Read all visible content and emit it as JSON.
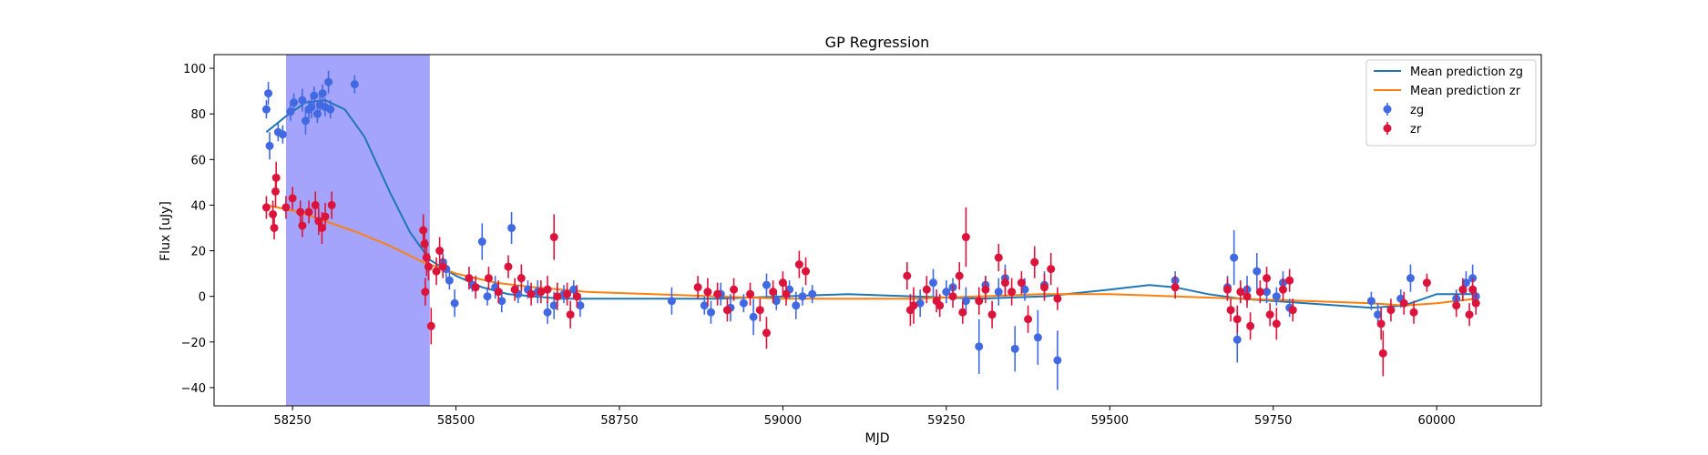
{
  "chart_data": {
    "type": "scatter",
    "title": "GP Regression",
    "xlabel": "MJD",
    "ylabel": "Flux [uJy]",
    "xlim": [
      58130,
      60160
    ],
    "ylim": [
      -48,
      106
    ],
    "xticks": [
      58250,
      58500,
      58750,
      59000,
      59250,
      59500,
      59750,
      60000
    ],
    "yticks": [
      -40,
      -20,
      0,
      20,
      40,
      60,
      80,
      100
    ],
    "grid": false,
    "legend_position": "top-right",
    "shaded_region": {
      "x_start": 58240,
      "x_end": 58460,
      "color": "#a4a4fc"
    },
    "colors": {
      "zg_line": "#1f77b4",
      "zr_line": "#ff7f0e",
      "zg_points": "#4169e1",
      "zr_points": "#dc143c"
    },
    "legend": [
      {
        "label": "Mean prediction zg",
        "kind": "line",
        "color": "#1f77b4"
      },
      {
        "label": "Mean prediction zr",
        "kind": "line",
        "color": "#ff7f0e"
      },
      {
        "label": "zg",
        "kind": "errorbar",
        "color": "#4169e1"
      },
      {
        "label": "zr",
        "kind": "errorbar",
        "color": "#dc143c"
      }
    ],
    "lines": [
      {
        "name": "Mean prediction zg",
        "color": "#1f77b4",
        "x": [
          58210,
          58240,
          58270,
          58300,
          58330,
          58360,
          58400,
          58430,
          58460,
          58500,
          58540,
          58580,
          58620,
          58660,
          58700,
          58800,
          58900,
          59000,
          59100,
          59200,
          59300,
          59400,
          59500,
          59560,
          59600,
          59650,
          59700,
          59750,
          59800,
          59850,
          59900,
          59950,
          60000,
          60060
        ],
        "y": [
          72,
          79,
          85,
          86,
          82,
          70,
          45,
          28,
          16,
          9,
          4,
          1,
          0,
          -1,
          -1,
          -1,
          -1,
          0,
          1,
          0,
          -1,
          0,
          3,
          5,
          4,
          1,
          -1,
          -2,
          -3,
          -4,
          -5,
          -4,
          1,
          1
        ]
      },
      {
        "name": "Mean prediction zr",
        "color": "#ff7f0e",
        "x": [
          58210,
          58260,
          58300,
          58350,
          58400,
          58450,
          58500,
          58560,
          58620,
          58700,
          58800,
          58900,
          59000,
          59100,
          59200,
          59300,
          59400,
          59500,
          59600,
          59700,
          59800,
          59900,
          59950,
          60000,
          60060
        ],
        "y": [
          40,
          37,
          33,
          28,
          22,
          15,
          10,
          6,
          4,
          2,
          1,
          0,
          -1,
          -1,
          -1,
          0,
          1,
          1,
          0,
          -1,
          -2,
          -3,
          -4,
          -3,
          -1
        ]
      }
    ],
    "series": [
      {
        "name": "zg",
        "color": "#4169e1",
        "points": [
          [
            58210,
            82,
            4
          ],
          [
            58213,
            89,
            5
          ],
          [
            58215,
            66,
            6
          ],
          [
            58228,
            72,
            4
          ],
          [
            58235,
            71,
            4
          ],
          [
            58247,
            81,
            4
          ],
          [
            58252,
            85,
            4
          ],
          [
            58265,
            86,
            5
          ],
          [
            58270,
            77,
            6
          ],
          [
            58275,
            82,
            4
          ],
          [
            58279,
            83,
            5
          ],
          [
            58283,
            88,
            4
          ],
          [
            58288,
            80,
            4
          ],
          [
            58292,
            84,
            5
          ],
          [
            58296,
            89,
            4
          ],
          [
            58300,
            83,
            4
          ],
          [
            58305,
            94,
            5
          ],
          [
            58308,
            82,
            4
          ],
          [
            58345,
            93,
            4
          ],
          [
            58480,
            15,
            4
          ],
          [
            58485,
            12,
            4
          ],
          [
            58490,
            7,
            4
          ],
          [
            58498,
            -3,
            6
          ],
          [
            58525,
            5,
            3
          ],
          [
            58540,
            24,
            8
          ],
          [
            58548,
            0,
            4
          ],
          [
            58560,
            4,
            5
          ],
          [
            58570,
            -2,
            5
          ],
          [
            58585,
            30,
            7
          ],
          [
            58595,
            1,
            4
          ],
          [
            58610,
            3,
            4
          ],
          [
            58625,
            2,
            5
          ],
          [
            58640,
            -7,
            5
          ],
          [
            58650,
            -4,
            6
          ],
          [
            58665,
            1,
            4
          ],
          [
            58680,
            3,
            4
          ],
          [
            58690,
            -4,
            5
          ],
          [
            58830,
            -2,
            6
          ],
          [
            58880,
            -4,
            4
          ],
          [
            58890,
            -7,
            5
          ],
          [
            58905,
            1,
            5
          ],
          [
            58920,
            -5,
            6
          ],
          [
            58940,
            -3,
            4
          ],
          [
            58955,
            -9,
            8
          ],
          [
            58975,
            5,
            5
          ],
          [
            58990,
            -2,
            4
          ],
          [
            59010,
            3,
            4
          ],
          [
            59020,
            -4,
            6
          ],
          [
            59030,
            0,
            4
          ],
          [
            59045,
            1,
            4
          ],
          [
            59210,
            -3,
            6
          ],
          [
            59230,
            6,
            6
          ],
          [
            59250,
            2,
            5
          ],
          [
            59260,
            4,
            4
          ],
          [
            59280,
            -2,
            6
          ],
          [
            59300,
            -22,
            12
          ],
          [
            59310,
            5,
            4
          ],
          [
            59330,
            2,
            6
          ],
          [
            59340,
            8,
            6
          ],
          [
            59355,
            -23,
            10
          ],
          [
            59370,
            3,
            5
          ],
          [
            59390,
            -18,
            12
          ],
          [
            59400,
            5,
            6
          ],
          [
            59420,
            -28,
            13
          ],
          [
            59600,
            7,
            4
          ],
          [
            59680,
            4,
            5
          ],
          [
            59690,
            17,
            12
          ],
          [
            59695,
            -19,
            10
          ],
          [
            59710,
            3,
            6
          ],
          [
            59725,
            11,
            8
          ],
          [
            59740,
            2,
            5
          ],
          [
            59755,
            0,
            4
          ],
          [
            59765,
            6,
            5
          ],
          [
            59775,
            -5,
            4
          ],
          [
            59900,
            -2,
            4
          ],
          [
            59910,
            -8,
            5
          ],
          [
            59945,
            -1,
            4
          ],
          [
            59960,
            8,
            6
          ],
          [
            60030,
            -1,
            4
          ],
          [
            60045,
            6,
            5
          ],
          [
            60055,
            8,
            6
          ],
          [
            60060,
            0,
            4
          ]
        ]
      },
      {
        "name": "zr",
        "color": "#dc143c",
        "points": [
          [
            58210,
            39,
            5
          ],
          [
            58220,
            36,
            6
          ],
          [
            58222,
            30,
            5
          ],
          [
            58225,
            52,
            7
          ],
          [
            58224,
            46,
            7
          ],
          [
            58240,
            39,
            5
          ],
          [
            58250,
            43,
            5
          ],
          [
            58262,
            37,
            5
          ],
          [
            58265,
            31,
            5
          ],
          [
            58275,
            37,
            5
          ],
          [
            58285,
            40,
            6
          ],
          [
            58290,
            33,
            6
          ],
          [
            58295,
            30,
            7
          ],
          [
            58300,
            35,
            6
          ],
          [
            58310,
            40,
            6
          ],
          [
            58450,
            29,
            7
          ],
          [
            58452,
            23,
            7
          ],
          [
            58455,
            17,
            8
          ],
          [
            58453,
            2,
            6
          ],
          [
            58458,
            13,
            6
          ],
          [
            58462,
            -13,
            8
          ],
          [
            58470,
            11,
            6
          ],
          [
            58475,
            20,
            6
          ],
          [
            58480,
            13,
            5
          ],
          [
            58520,
            8,
            5
          ],
          [
            58530,
            4,
            5
          ],
          [
            58550,
            8,
            5
          ],
          [
            58565,
            2,
            5
          ],
          [
            58580,
            13,
            5
          ],
          [
            58590,
            3,
            5
          ],
          [
            58600,
            8,
            6
          ],
          [
            58615,
            1,
            5
          ],
          [
            58630,
            2,
            5
          ],
          [
            58640,
            3,
            6
          ],
          [
            58650,
            26,
            10
          ],
          [
            58655,
            0,
            6
          ],
          [
            58670,
            1,
            5
          ],
          [
            58675,
            -8,
            6
          ],
          [
            58685,
            0,
            5
          ],
          [
            58870,
            4,
            5
          ],
          [
            58885,
            2,
            6
          ],
          [
            58900,
            1,
            5
          ],
          [
            58915,
            -6,
            5
          ],
          [
            58925,
            3,
            5
          ],
          [
            58950,
            1,
            5
          ],
          [
            58965,
            -6,
            5
          ],
          [
            58975,
            -16,
            7
          ],
          [
            58985,
            2,
            5
          ],
          [
            59000,
            6,
            5
          ],
          [
            59005,
            1,
            5
          ],
          [
            59025,
            14,
            6
          ],
          [
            59035,
            11,
            6
          ],
          [
            59190,
            9,
            6
          ],
          [
            59195,
            -6,
            7
          ],
          [
            59200,
            -4,
            8
          ],
          [
            59220,
            3,
            6
          ],
          [
            59235,
            -2,
            5
          ],
          [
            59240,
            -4,
            5
          ],
          [
            59260,
            0,
            5
          ],
          [
            59270,
            9,
            6
          ],
          [
            59275,
            -7,
            5
          ],
          [
            59280,
            26,
            13
          ],
          [
            59300,
            -2,
            6
          ],
          [
            59310,
            3,
            6
          ],
          [
            59320,
            -8,
            6
          ],
          [
            59330,
            17,
            6
          ],
          [
            59340,
            6,
            6
          ],
          [
            59350,
            2,
            6
          ],
          [
            59365,
            6,
            5
          ],
          [
            59375,
            -10,
            6
          ],
          [
            59385,
            15,
            7
          ],
          [
            59400,
            4,
            6
          ],
          [
            59410,
            12,
            7
          ],
          [
            59420,
            -1,
            5
          ],
          [
            59600,
            4,
            5
          ],
          [
            59680,
            3,
            5
          ],
          [
            59685,
            -6,
            5
          ],
          [
            59695,
            -10,
            6
          ],
          [
            59700,
            2,
            5
          ],
          [
            59710,
            0,
            5
          ],
          [
            59715,
            -13,
            6
          ],
          [
            59730,
            2,
            5
          ],
          [
            59740,
            8,
            5
          ],
          [
            59745,
            -8,
            5
          ],
          [
            59755,
            -12,
            7
          ],
          [
            59765,
            3,
            5
          ],
          [
            59775,
            7,
            5
          ],
          [
            59780,
            -6,
            5
          ],
          [
            59915,
            -12,
            7
          ],
          [
            59918,
            -25,
            10
          ],
          [
            59930,
            -6,
            5
          ],
          [
            59950,
            -3,
            5
          ],
          [
            59965,
            -7,
            5
          ],
          [
            59985,
            6,
            4
          ],
          [
            60030,
            -4,
            5
          ],
          [
            60040,
            3,
            5
          ],
          [
            60050,
            -8,
            5
          ],
          [
            60055,
            3,
            5
          ],
          [
            60060,
            -3,
            5
          ]
        ]
      }
    ]
  }
}
